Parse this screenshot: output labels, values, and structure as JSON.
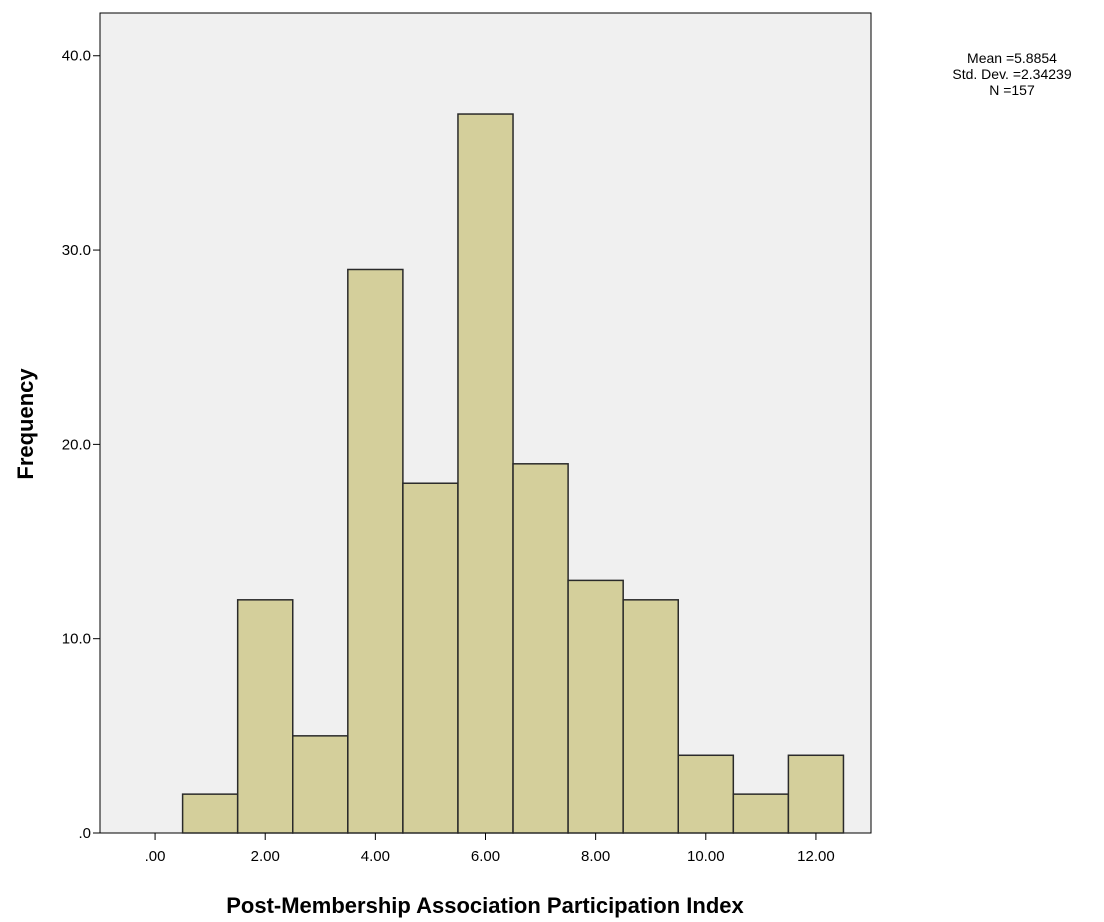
{
  "chart_data": {
    "type": "bar",
    "subtype": "histogram",
    "xlabel": "Post-Membership Association Participation Index",
    "ylabel": "Frequency",
    "bins": [
      {
        "center": 1.0,
        "start": 0.5,
        "end": 1.5,
        "value": 2
      },
      {
        "center": 2.0,
        "start": 1.5,
        "end": 2.5,
        "value": 12
      },
      {
        "center": 3.0,
        "start": 2.5,
        "end": 3.5,
        "value": 5
      },
      {
        "center": 4.0,
        "start": 3.5,
        "end": 4.5,
        "value": 29
      },
      {
        "center": 5.0,
        "start": 4.5,
        "end": 5.5,
        "value": 18
      },
      {
        "center": 6.0,
        "start": 5.5,
        "end": 6.5,
        "value": 37
      },
      {
        "center": 7.0,
        "start": 6.5,
        "end": 7.5,
        "value": 19
      },
      {
        "center": 8.0,
        "start": 7.5,
        "end": 8.5,
        "value": 13
      },
      {
        "center": 9.0,
        "start": 8.5,
        "end": 9.5,
        "value": 12
      },
      {
        "center": 10.0,
        "start": 9.5,
        "end": 10.5,
        "value": 4
      },
      {
        "center": 11.0,
        "start": 10.5,
        "end": 11.5,
        "value": 2
      },
      {
        "center": 12.0,
        "start": 11.5,
        "end": 12.5,
        "value": 4
      }
    ],
    "xlim": [
      -1.0,
      13.0
    ],
    "ylim": [
      0,
      42.2
    ],
    "x_ticks": [
      0,
      2,
      4,
      6,
      8,
      10,
      12
    ],
    "x_tick_labels": [
      ".00",
      "2.00",
      "4.00",
      "6.00",
      "8.00",
      "10.00",
      "12.00"
    ],
    "y_ticks": [
      0,
      10,
      20,
      30,
      40
    ],
    "y_tick_labels": [
      ".0",
      "10.0",
      "20.0",
      "30.0",
      "40.0"
    ],
    "grid": false,
    "legend": "none",
    "stats": {
      "mean": "Mean =5.8854",
      "std_dev": "Std. Dev. =2.34239",
      "n": "N =157"
    },
    "colors": {
      "bar_fill": "#d4cf9b",
      "bar_stroke": "#2a2a2a",
      "plot_background": "#f0f0f0",
      "axis": "#000000"
    }
  }
}
